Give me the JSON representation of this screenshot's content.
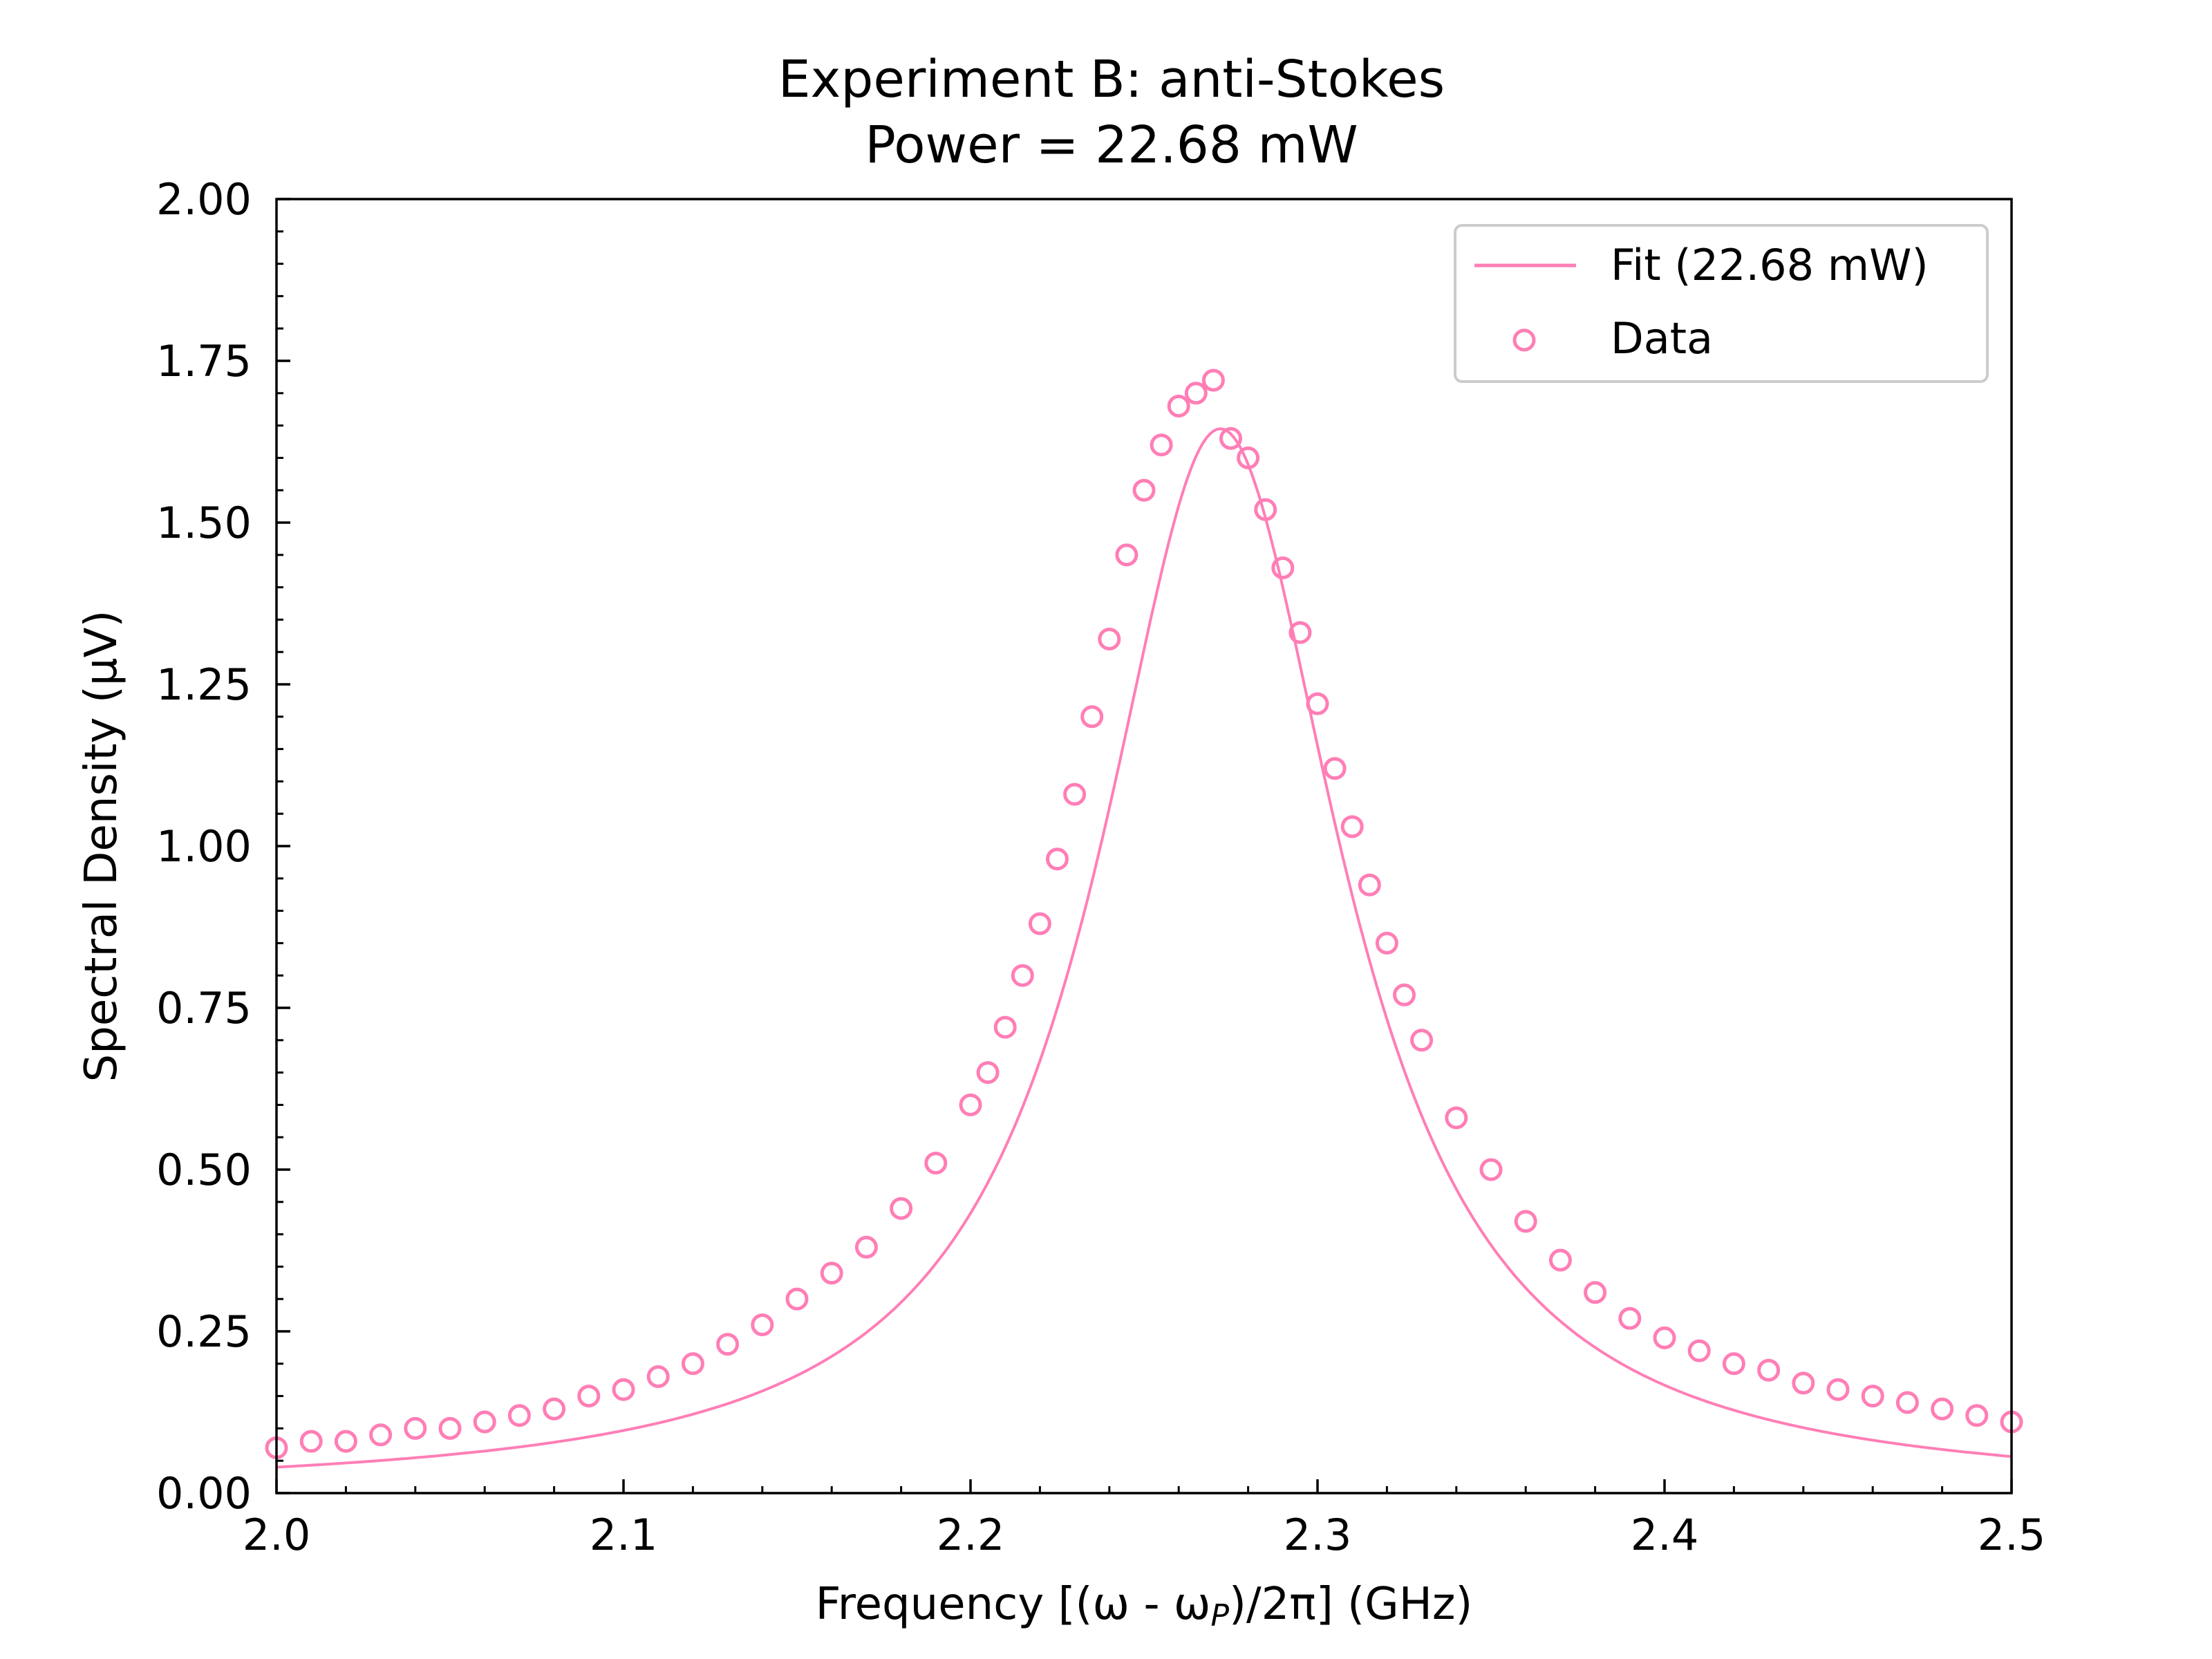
{
  "chart_data": {
    "type": "scatter",
    "title": "Experiment B: anti-Stokes",
    "subtitle": "Power = 22.68 mW",
    "xlabel": "Frequency [(ω - ω",
    "xlabel_sub": "P",
    "xlabel_end": ")/2π] (GHz)",
    "ylabel": "Spectral Density (μV)",
    "xlim": [
      2.0,
      2.5
    ],
    "ylim": [
      0.0,
      2.0
    ],
    "xticks": [
      2.0,
      2.1,
      2.2,
      2.3,
      2.4,
      2.5
    ],
    "xtick_labels": [
      "2.0",
      "2.1",
      "2.2",
      "2.3",
      "2.4",
      "2.5"
    ],
    "yticks": [
      0.0,
      0.25,
      0.5,
      0.75,
      1.0,
      1.25,
      1.5,
      1.75,
      2.0
    ],
    "ytick_labels": [
      "0.00",
      "0.25",
      "0.50",
      "0.75",
      "1.00",
      "1.25",
      "1.50",
      "1.75",
      "2.00"
    ],
    "grid": false,
    "legend_position": "top-right",
    "color": "#ff7eb6",
    "fit": {
      "name": "Fit (22.68 mW)",
      "model": "lorentzian",
      "center": 2.272,
      "hwhm": 0.043,
      "amplitude": 1.645
    },
    "series": [
      {
        "name": "Data",
        "x": [
          2.0,
          2.01,
          2.02,
          2.03,
          2.04,
          2.05,
          2.06,
          2.07,
          2.08,
          2.09,
          2.1,
          2.11,
          2.12,
          2.13,
          2.14,
          2.15,
          2.16,
          2.17,
          2.18,
          2.19,
          2.2,
          2.205,
          2.21,
          2.215,
          2.22,
          2.225,
          2.23,
          2.235,
          2.24,
          2.245,
          2.25,
          2.255,
          2.26,
          2.265,
          2.27,
          2.275,
          2.28,
          2.285,
          2.29,
          2.295,
          2.3,
          2.305,
          2.31,
          2.315,
          2.32,
          2.325,
          2.33,
          2.34,
          2.35,
          2.36,
          2.37,
          2.38,
          2.39,
          2.4,
          2.41,
          2.42,
          2.43,
          2.44,
          2.45,
          2.46,
          2.47,
          2.48,
          2.49,
          2.5
        ],
        "y": [
          0.07,
          0.08,
          0.08,
          0.09,
          0.1,
          0.1,
          0.11,
          0.12,
          0.13,
          0.15,
          0.16,
          0.18,
          0.2,
          0.23,
          0.26,
          0.3,
          0.34,
          0.38,
          0.44,
          0.51,
          0.6,
          0.65,
          0.72,
          0.8,
          0.88,
          0.98,
          1.08,
          1.2,
          1.32,
          1.45,
          1.55,
          1.62,
          1.68,
          1.7,
          1.72,
          1.63,
          1.6,
          1.52,
          1.43,
          1.33,
          1.22,
          1.12,
          1.03,
          0.94,
          0.85,
          0.77,
          0.7,
          0.58,
          0.5,
          0.42,
          0.36,
          0.31,
          0.27,
          0.24,
          0.22,
          0.2,
          0.19,
          0.17,
          0.16,
          0.15,
          0.14,
          0.13,
          0.12,
          0.11
        ]
      }
    ]
  }
}
